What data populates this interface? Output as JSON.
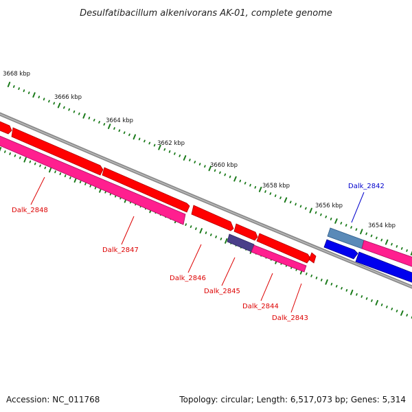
{
  "title": "Desulfatibacillum alkenivorans AK-01, complete genome",
  "colors": {
    "backbone": "#808080",
    "tick": "#1a7a1a",
    "forward_gene": "#ff0000",
    "reverse_gene": "#ff1f8f",
    "blue_gene": "#0000ee",
    "steel_gene": "#5a8ab8",
    "purple_gene": "#4a3f8a",
    "red_label": "#dd0000",
    "blue_label": "#0000cc"
  },
  "ticks": [
    {
      "label": "3668 kbp"
    },
    {
      "label": "3666 kbp"
    },
    {
      "label": "3664 kbp"
    },
    {
      "label": "3662 kbp"
    },
    {
      "label": "3660 kbp"
    },
    {
      "label": "3658 kbp"
    },
    {
      "label": "3656 kbp"
    },
    {
      "label": "3654 kbp"
    }
  ],
  "genes": [
    {
      "label": "Dalk_2848",
      "color": "red"
    },
    {
      "label": "Dalk_2847",
      "color": "red"
    },
    {
      "label": "Dalk_2846",
      "color": "red"
    },
    {
      "label": "Dalk_2845",
      "color": "red"
    },
    {
      "label": "Dalk_2844",
      "color": "red"
    },
    {
      "label": "Dalk_2843",
      "color": "red"
    },
    {
      "label": "Dalk_2842",
      "color": "blue"
    }
  ],
  "footer": {
    "accession": "Accession: NC_011768",
    "stats": "Topology: circular; Length: 6,517,073 bp; Genes: 5,314"
  }
}
